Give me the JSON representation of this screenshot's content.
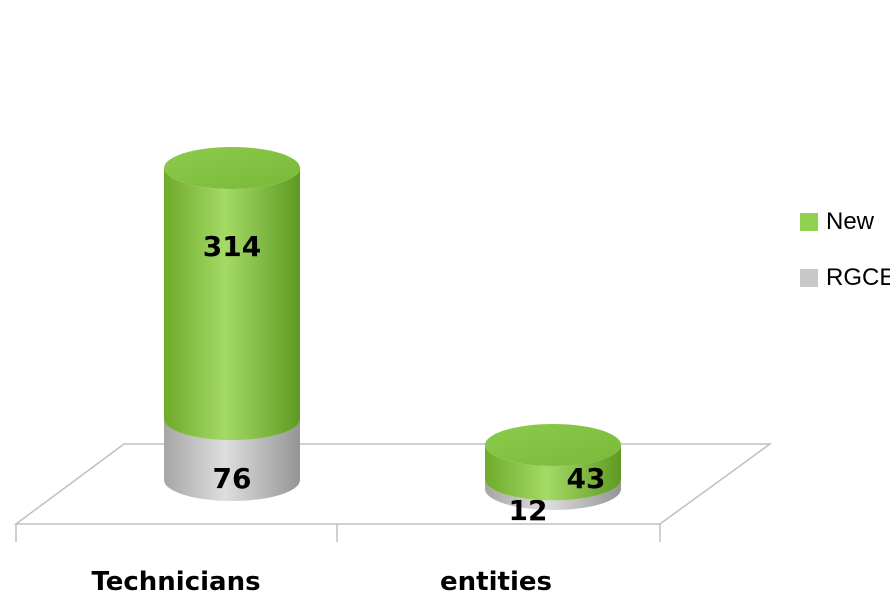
{
  "chart_data": {
    "type": "bar",
    "stacked": true,
    "style": "3d-cylinder",
    "categories": [
      "Technicians",
      "entities"
    ],
    "series": [
      {
        "name": "RGCE",
        "values": [
          76,
          12
        ],
        "color": "#c8c8c8"
      },
      {
        "name": "New",
        "values": [
          314,
          43
        ],
        "color": "#92d050"
      }
    ],
    "title": "",
    "xlabel": "",
    "ylabel": "",
    "legend_position": "right",
    "grid": false
  }
}
